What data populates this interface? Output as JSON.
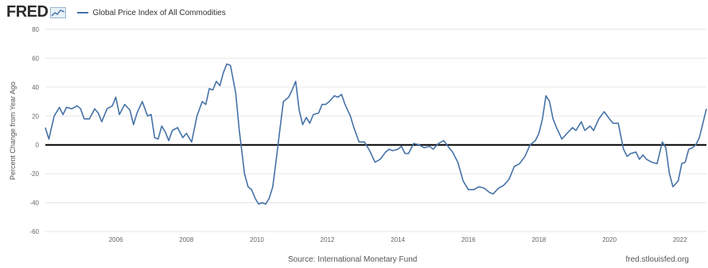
{
  "header": {
    "logo": "FRED",
    "legend_label": "Global Price Index of All Commodities",
    "series_color": "#4572a7"
  },
  "footer": {
    "source": "Source: International Monetary Fund",
    "brand": "fred.stlouisfed.org"
  },
  "chart_data": {
    "type": "line",
    "title": "",
    "xlabel": "",
    "ylabel": "Percent Change from Year Ago",
    "ylim": [
      -60,
      80
    ],
    "xlim": [
      2004.0,
      2022.75
    ],
    "y_ticks": [
      80,
      60,
      40,
      20,
      0,
      -20,
      -40,
      -60
    ],
    "x_ticks": [
      2006,
      2008,
      2010,
      2012,
      2014,
      2016,
      2018,
      2020,
      2022
    ],
    "grid": "horizontal",
    "legend": "top",
    "zero_line": true,
    "series": [
      {
        "name": "Global Price Index of All Commodities",
        "color": "#4572a7",
        "points": [
          [
            2004.0,
            12
          ],
          [
            2004.1,
            4
          ],
          [
            2004.25,
            20
          ],
          [
            2004.4,
            26
          ],
          [
            2004.5,
            21
          ],
          [
            2004.6,
            26
          ],
          [
            2004.75,
            25
          ],
          [
            2004.9,
            27
          ],
          [
            2005.0,
            25
          ],
          [
            2005.1,
            18
          ],
          [
            2005.25,
            18
          ],
          [
            2005.4,
            25
          ],
          [
            2005.5,
            22
          ],
          [
            2005.6,
            16
          ],
          [
            2005.75,
            25
          ],
          [
            2005.9,
            27
          ],
          [
            2006.0,
            33
          ],
          [
            2006.1,
            21
          ],
          [
            2006.25,
            28
          ],
          [
            2006.4,
            24
          ],
          [
            2006.5,
            14
          ],
          [
            2006.6,
            22
          ],
          [
            2006.75,
            30
          ],
          [
            2006.9,
            20
          ],
          [
            2007.0,
            21
          ],
          [
            2007.1,
            5
          ],
          [
            2007.2,
            4
          ],
          [
            2007.3,
            13
          ],
          [
            2007.4,
            9
          ],
          [
            2007.5,
            3
          ],
          [
            2007.6,
            10
          ],
          [
            2007.75,
            12
          ],
          [
            2007.9,
            5
          ],
          [
            2008.0,
            8
          ],
          [
            2008.15,
            2
          ],
          [
            2008.3,
            20
          ],
          [
            2008.45,
            30
          ],
          [
            2008.55,
            28
          ],
          [
            2008.65,
            39
          ],
          [
            2008.75,
            38
          ],
          [
            2008.85,
            44
          ],
          [
            2008.95,
            41
          ],
          [
            2009.05,
            50
          ],
          [
            2009.15,
            56
          ],
          [
            2009.25,
            55
          ],
          [
            2009.4,
            36
          ],
          [
            2009.5,
            10
          ],
          [
            2009.65,
            -20
          ],
          [
            2009.75,
            -29
          ],
          [
            2009.85,
            -31
          ],
          [
            2009.95,
            -37
          ],
          [
            2010.05,
            -41
          ],
          [
            2010.15,
            -40
          ],
          [
            2010.25,
            -41
          ],
          [
            2010.35,
            -37
          ],
          [
            2010.45,
            -29
          ],
          [
            2010.55,
            -10
          ],
          [
            2010.65,
            10
          ],
          [
            2010.75,
            30
          ],
          [
            2010.9,
            33
          ],
          [
            2011.0,
            38
          ],
          [
            2011.1,
            44
          ],
          [
            2011.2,
            24
          ],
          [
            2011.3,
            14
          ],
          [
            2011.4,
            19
          ],
          [
            2011.5,
            15
          ],
          [
            2011.6,
            21
          ],
          [
            2011.75,
            22
          ],
          [
            2011.85,
            28
          ],
          [
            2011.95,
            28
          ],
          [
            2012.05,
            30
          ],
          [
            2012.2,
            34
          ],
          [
            2012.3,
            33
          ],
          [
            2012.4,
            35
          ],
          [
            2012.5,
            28
          ],
          [
            2012.65,
            20
          ],
          [
            2012.75,
            12
          ],
          [
            2012.9,
            2
          ],
          [
            2013.05,
            2
          ],
          [
            2013.2,
            -4
          ],
          [
            2013.35,
            -12
          ],
          [
            2013.5,
            -10
          ],
          [
            2013.65,
            -5
          ],
          [
            2013.75,
            -3
          ],
          [
            2013.85,
            -4
          ],
          [
            2014.0,
            -3
          ],
          [
            2014.1,
            -1
          ],
          [
            2014.2,
            -6
          ],
          [
            2014.3,
            -6
          ],
          [
            2014.45,
            1
          ],
          [
            2014.6,
            0
          ],
          [
            2014.75,
            -2
          ],
          [
            2014.9,
            -1
          ],
          [
            2015.0,
            -3
          ],
          [
            2015.15,
            1
          ],
          [
            2015.3,
            3
          ],
          [
            2015.45,
            -2
          ],
          [
            2015.55,
            -5
          ],
          [
            2015.7,
            -12
          ],
          [
            2015.85,
            -25
          ],
          [
            2016.0,
            -31
          ],
          [
            2016.15,
            -31
          ],
          [
            2016.3,
            -29
          ],
          [
            2016.45,
            -30
          ],
          [
            2016.6,
            -33
          ],
          [
            2016.7,
            -34
          ],
          [
            2016.85,
            -30
          ],
          [
            2017.0,
            -28
          ],
          [
            2017.15,
            -24
          ],
          [
            2017.3,
            -15
          ],
          [
            2017.45,
            -13
          ],
          [
            2017.6,
            -8
          ],
          [
            2017.75,
            0
          ],
          [
            2017.9,
            3
          ],
          [
            2018.0,
            8
          ],
          [
            2018.1,
            18
          ],
          [
            2018.2,
            34
          ],
          [
            2018.3,
            30
          ],
          [
            2018.4,
            18
          ],
          [
            2018.5,
            12
          ],
          [
            2018.65,
            4
          ],
          [
            2018.8,
            8
          ],
          [
            2018.95,
            12
          ],
          [
            2019.05,
            10
          ],
          [
            2019.2,
            16
          ],
          [
            2019.3,
            10
          ],
          [
            2019.45,
            13
          ],
          [
            2019.55,
            10
          ],
          [
            2019.7,
            18
          ],
          [
            2019.85,
            23
          ],
          [
            2020.0,
            18
          ],
          [
            2020.1,
            15
          ],
          [
            2020.25,
            15
          ],
          [
            2020.4,
            -3
          ],
          [
            2020.5,
            -8
          ],
          [
            2020.6,
            -6
          ],
          [
            2020.75,
            -5
          ],
          [
            2020.85,
            -10
          ],
          [
            2020.95,
            -7
          ],
          [
            2021.05,
            -10
          ],
          [
            2021.2,
            -12
          ],
          [
            2021.35,
            -13
          ],
          [
            2021.5,
            2
          ],
          [
            2021.6,
            -2
          ],
          [
            2021.7,
            -20
          ],
          [
            2021.8,
            -29
          ],
          [
            2021.95,
            -25
          ],
          [
            2022.05,
            -13
          ],
          [
            2022.15,
            -12
          ],
          [
            2022.25,
            -3
          ],
          [
            2022.35,
            -2
          ],
          [
            2022.45,
            0
          ],
          [
            2022.55,
            5
          ],
          [
            2022.65,
            15
          ],
          [
            2022.75,
            25
          ]
        ]
      }
    ]
  }
}
